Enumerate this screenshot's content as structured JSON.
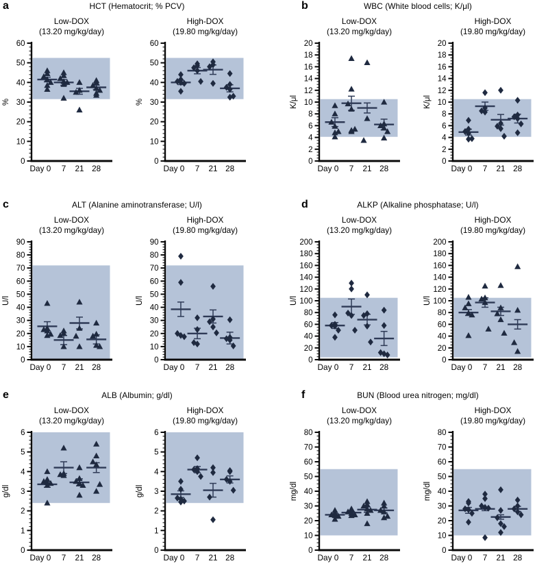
{
  "figure": {
    "background": "#ffffff",
    "band_color": "#b5c3d8",
    "marker_color": "#1f2a40",
    "mean_line_color": "#2e3a56",
    "axis_color": "#0a0a0a"
  },
  "x_categories": [
    "Day 0",
    "7",
    "21",
    "28"
  ],
  "chart_data": [
    {
      "type": "scatter",
      "letter": "a",
      "title": "HCT (Hematocrit; % PCV)",
      "ylabel": "%",
      "ylim": [
        0,
        60
      ],
      "ymajor": 10,
      "yminor": 2,
      "band": [
        31.5,
        52.5
      ],
      "subplots": [
        {
          "label": "Low-DOX",
          "dose": "(13.20 mg/kg/day)",
          "marker": "triangle",
          "groups": [
            {
              "points": [
                46,
                44.5,
                43,
                41.5,
                40,
                38.5,
                36.5
              ],
              "mean": 41.5,
              "sem": 1.2
            },
            {
              "points": [
                45,
                43.5,
                42,
                40.5,
                40,
                39,
                32
              ],
              "mean": 40,
              "sem": 1.5
            },
            {
              "points": [
                40,
                36,
                35,
                26
              ],
              "mean": 35.5,
              "sem": 1.5
            },
            {
              "points": [
                41,
                40,
                38.5,
                37,
                36,
                34.5,
                33.5
              ],
              "mean": 37.5,
              "sem": 1.1
            }
          ]
        },
        {
          "label": "High-DOX",
          "dose": "(19.80 mg/kg/day)",
          "marker": "diamond",
          "groups": [
            {
              "points": [
                44,
                41.5,
                40.5,
                40,
                39.5,
                35.5
              ],
              "mean": 40,
              "sem": 1.1
            },
            {
              "points": [
                49.5,
                48.5,
                47.5,
                46,
                40.5
              ],
              "mean": 46,
              "sem": 1.6
            },
            {
              "points": [
                50.5,
                49,
                48,
                39.5
              ],
              "mean": 46.5,
              "sem": 2.4
            },
            {
              "points": [
                44.5,
                39,
                37.5,
                36.5,
                33,
                32.5
              ],
              "mean": 37,
              "sem": 1.8
            }
          ]
        }
      ]
    },
    {
      "type": "scatter",
      "letter": "b",
      "title": "WBC (White blood cells; K/μl)",
      "ylabel": "K/μl",
      "ylim": [
        0,
        20
      ],
      "ymajor": 2,
      "yminor": 0.5,
      "band": [
        4.1,
        10.5
      ],
      "subplots": [
        {
          "label": "Low-DOX",
          "dose": "(13.20 mg/kg/day)",
          "marker": "triangle",
          "groups": [
            {
              "points": [
                9.4,
                8.0,
                6.6,
                5.9,
                5.0,
                4.8,
                4.1
              ],
              "mean": 6.6,
              "sem": 0.75
            },
            {
              "points": [
                17.4,
                12.2,
                9.7,
                8.8,
                5.4,
                5.2,
                5.0
              ],
              "mean": 9.8,
              "sem": 1.2
            },
            {
              "points": [
                16.7,
                7.2,
                3.5
              ],
              "mean": 9.0,
              "sem": 0.85
            },
            {
              "points": [
                10.0,
                6.3,
                6.0,
                5.6,
                5.0,
                3.9
              ],
              "mean": 6.2,
              "sem": 0.9
            }
          ]
        },
        {
          "label": "High-DOX",
          "dose": "(19.80 mg/kg/day)",
          "marker": "diamond",
          "groups": [
            {
              "points": [
                6.9,
                5.4,
                5.0,
                4.7,
                3.8,
                3.7
              ],
              "mean": 4.9,
              "sem": 0.5
            },
            {
              "points": [
                11.6,
                9.0,
                8.5,
                8.3
              ],
              "mean": 9.3,
              "sem": 0.7
            },
            {
              "points": [
                12.0,
                6.4,
                5.9,
                5.5,
                4.2
              ],
              "mean": 7.0,
              "sem": 0.9
            },
            {
              "points": [
                10.3,
                7.8,
                7.5,
                7.2,
                6.3,
                4.8
              ],
              "mean": 7.2,
              "sem": 0.75
            }
          ]
        }
      ]
    },
    {
      "type": "scatter",
      "letter": "c",
      "title": "ALT (Alanine aminotransferase; U/l)",
      "ylabel": "U/l",
      "ylim": [
        0,
        90
      ],
      "ymajor": 10,
      "yminor": 2,
      "band": [
        0,
        72
      ],
      "subplots": [
        {
          "label": "Low-DOX",
          "dose": "(13.20 mg/kg/day)",
          "marker": "triangle",
          "groups": [
            {
              "points": [
                43,
                24,
                23,
                22,
                19.5,
                18.5
              ],
              "mean": 25.5,
              "sem": 3.5
            },
            {
              "points": [
                22,
                20,
                18.5,
                10
              ],
              "mean": 15,
              "sem": 3.5
            },
            {
              "points": [
                44,
                24,
                18,
                10
              ],
              "mean": 28,
              "sem": 4.5
            },
            {
              "points": [
                28,
                19.5,
                18,
                11,
                10
              ],
              "mean": 15.5,
              "sem": 3.5
            }
          ]
        },
        {
          "label": "High-DOX",
          "dose": "(19.80 mg/kg/day)",
          "marker": "diamond",
          "groups": [
            {
              "points": [
                79,
                59,
                20,
                18.5,
                17.5
              ],
              "mean": 38.5,
              "sem": 5.5
            },
            {
              "points": [
                32,
                23,
                13,
                12
              ],
              "mean": 20,
              "sem": 4.0
            },
            {
              "points": [
                56,
                31,
                29,
                25,
                20.5
              ],
              "mean": 33,
              "sem": 5.0
            },
            {
              "points": [
                30.5,
                17,
                16,
                15,
                10.5
              ],
              "mean": 16.5,
              "sem": 4.5
            }
          ]
        }
      ]
    },
    {
      "type": "scatter",
      "letter": "d",
      "title": "ALKP (Alkaline phosphatase; U/l)",
      "ylabel": "U/l",
      "ylim": [
        0,
        200
      ],
      "ymajor": 20,
      "yminor": 5,
      "band": [
        4,
        105
      ],
      "subplots": [
        {
          "label": "Low-DOX",
          "dose": "(13.20 mg/kg/day)",
          "marker": "diamond",
          "groups": [
            {
              "points": [
                76,
                60,
                58,
                57,
                50,
                38
              ],
              "mean": 58,
              "sem": 5
            },
            {
              "points": [
                130,
                120,
                79,
                75,
                50
              ],
              "mean": 90,
              "sem": 13
            },
            {
              "points": [
                110,
                78,
                75,
                57,
                30
              ],
              "mean": 68,
              "sem": 9
            },
            {
              "points": [
                84,
                58,
                12,
                10,
                8
              ],
              "mean": 36,
              "sem": 12
            }
          ]
        },
        {
          "label": "High-DOX",
          "dose": "(19.80 mg/kg/day)",
          "marker": "triangle",
          "groups": [
            {
              "points": [
                106,
                95,
                88,
                79,
                76,
                41
              ],
              "mean": 80,
              "sem": 5
            },
            {
              "points": [
                125,
                105,
                103,
                97,
                52
              ],
              "mean": 97,
              "sem": 8
            },
            {
              "points": [
                126,
                88,
                78,
                68,
                45
              ],
              "mean": 82,
              "sem": 7
            },
            {
              "points": [
                158,
                84,
                29,
                14
              ],
              "mean": 60,
              "sem": 8
            }
          ]
        }
      ]
    },
    {
      "type": "scatter",
      "letter": "e",
      "title": "ALB (Albumin; g/dl)",
      "ylabel": "g/dl",
      "ylim": [
        0,
        6
      ],
      "ymajor": 1,
      "yminor": 0.2,
      "band": [
        2.4,
        6
      ],
      "subplots": [
        {
          "label": "Low-DOX",
          "dose": "(13.20 mg/kg/day)",
          "marker": "triangle",
          "groups": [
            {
              "points": [
                4.0,
                3.6,
                3.5,
                3.45,
                3.4,
                3.3,
                2.4
              ],
              "mean": 3.35,
              "sem": 0.15
            },
            {
              "points": [
                5.2,
                3.9,
                3.85,
                3.8
              ],
              "mean": 4.2,
              "sem": 0.3
            },
            {
              "points": [
                4.2,
                3.65,
                3.5,
                3.4,
                3.3,
                2.8
              ],
              "mean": 3.45,
              "sem": 0.18
            },
            {
              "points": [
                5.4,
                4.8,
                4.5,
                4.35,
                3.35,
                3.0
              ],
              "mean": 4.2,
              "sem": 0.25
            }
          ]
        },
        {
          "label": "High-DOX",
          "dose": "(19.80 mg/kg/day)",
          "marker": "diamond",
          "groups": [
            {
              "points": [
                3.5,
                3.1,
                2.65,
                2.6,
                2.5,
                2.45
              ],
              "mean": 2.85,
              "sem": 0.17
            },
            {
              "points": [
                4.7,
                4.15,
                4.1,
                4.0,
                3.75
              ],
              "mean": 4.1,
              "sem": 0.16
            },
            {
              "points": [
                4.2,
                3.95,
                2.7,
                1.55
              ],
              "mean": 3.05,
              "sem": 0.35
            },
            {
              "points": [
                4.05,
                4.0,
                3.6,
                3.5,
                3.05
              ],
              "mean": 3.6,
              "sem": 0.18
            }
          ]
        }
      ]
    },
    {
      "type": "scatter",
      "letter": "f",
      "title": "BUN (Blood urea nitrogen; mg/dl)",
      "ylabel": "mg/dl",
      "ylim": [
        0,
        80
      ],
      "ymajor": 10,
      "yminor": 2.5,
      "band": [
        10,
        55
      ],
      "subplots": [
        {
          "label": "Low-DOX",
          "dose": "(13.20 mg/kg/day)",
          "marker": "triangle",
          "groups": [
            {
              "points": [
                27,
                25,
                24,
                23.5,
                23,
                21
              ],
              "mean": 24,
              "sem": 0.9
            },
            {
              "points": [
                28,
                27,
                26,
                25,
                24,
                23.5
              ],
              "mean": 25.5,
              "sem": 0.7
            },
            {
              "points": [
                33,
                31,
                30,
                28,
                27,
                25,
                18
              ],
              "mean": 27.5,
              "sem": 1.8
            },
            {
              "points": [
                32,
                30,
                27,
                26,
                23,
                22
              ],
              "mean": 27,
              "sem": 1.6
            }
          ]
        },
        {
          "label": "High-DOX",
          "dose": "(19.80 mg/kg/day)",
          "marker": "diamond",
          "groups": [
            {
              "points": [
                33,
                32,
                28,
                27.5,
                25,
                19
              ],
              "mean": 27,
              "sem": 2.0
            },
            {
              "points": [
                38,
                35,
                30,
                29,
                28.5,
                8.5
              ],
              "mean": 28,
              "sem": 1.2
            },
            {
              "points": [
                41,
                27,
                22,
                18,
                16,
                12
              ],
              "mean": 22.5,
              "sem": 1.5
            },
            {
              "points": [
                34,
                30,
                28,
                26,
                24
              ],
              "mean": 28,
              "sem": 1.7
            }
          ]
        }
      ]
    }
  ]
}
